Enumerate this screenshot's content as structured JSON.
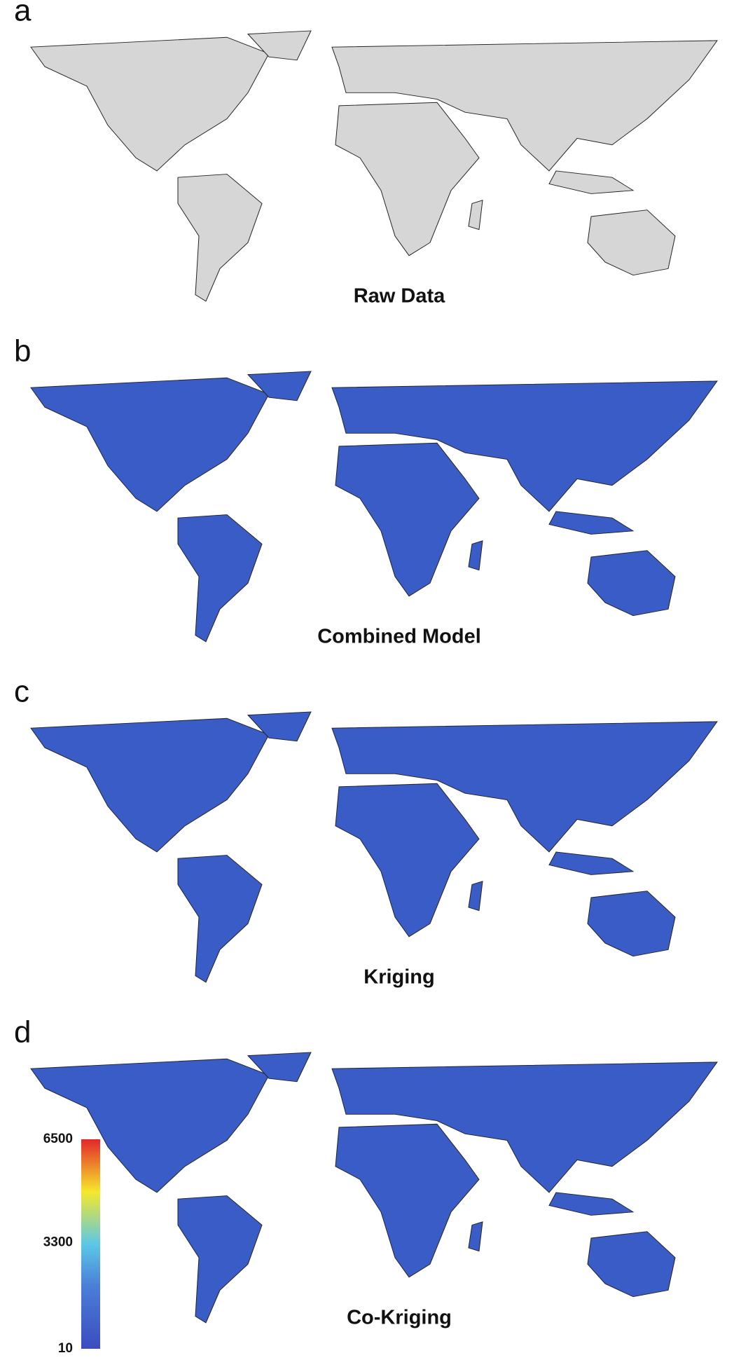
{
  "panels": [
    {
      "label": "a",
      "title": "Raw Data"
    },
    {
      "label": "b",
      "title": "Combined Model"
    },
    {
      "label": "c",
      "title": "Kriging"
    },
    {
      "label": "d",
      "title": "Co-Kriging"
    }
  ],
  "colorbar": {
    "ticks": [
      6500,
      3300,
      10
    ]
  }
}
